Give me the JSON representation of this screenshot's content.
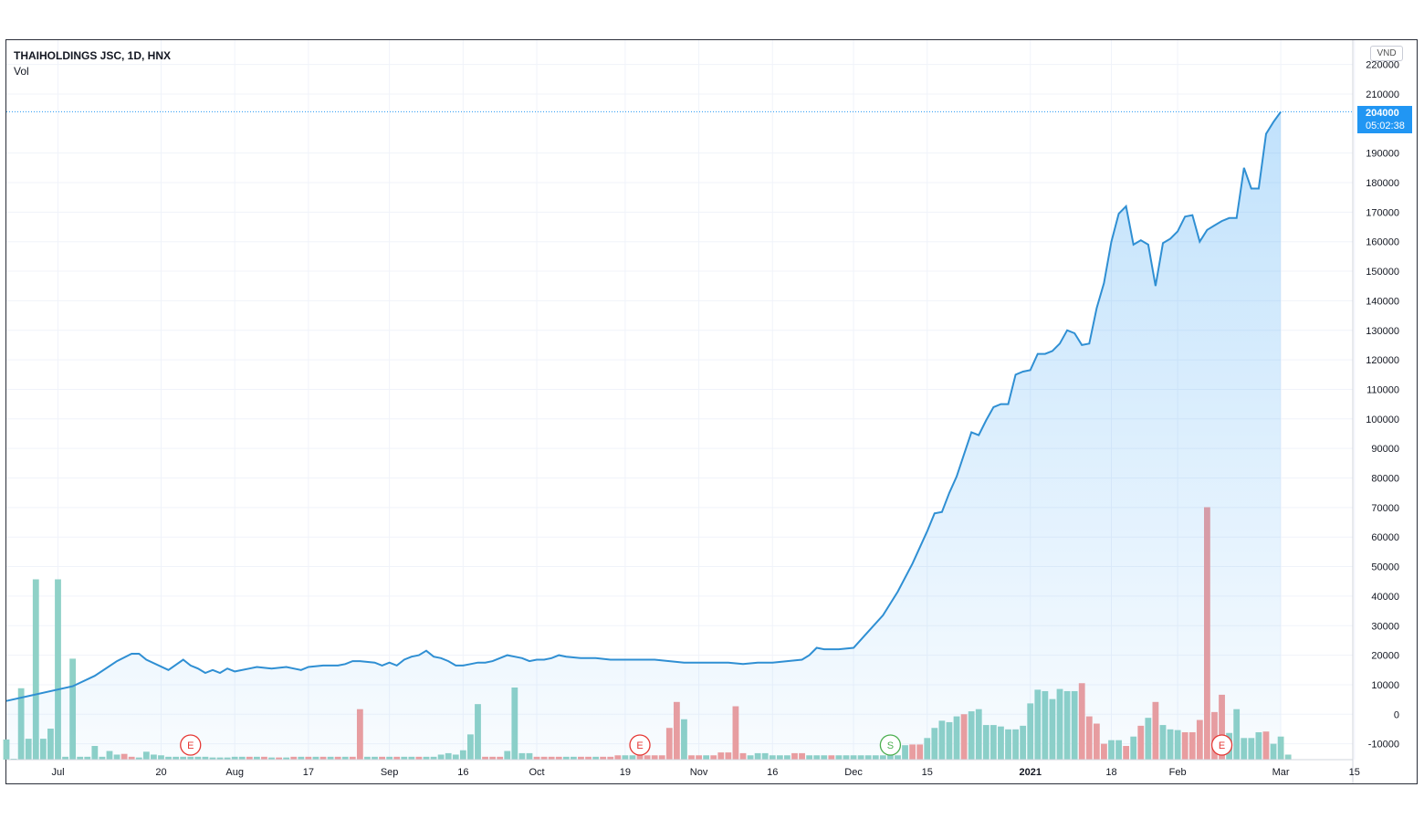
{
  "legend": {
    "title": "THAIHOLDINGS JSC, 1D, HNX",
    "volume_label": "Vol"
  },
  "currency_button": "VND",
  "last_price": {
    "price": "204000",
    "countdown": "05:02:38"
  },
  "colors": {
    "line": "#2f8fd3",
    "vol_up": "#8fd1c7",
    "vol_down": "#ef9d9d",
    "price_tag": "#2196f3",
    "grid": "#f0f3fa"
  },
  "markers": [
    {
      "letter": "E",
      "kind": "earnings",
      "date_index": 25
    },
    {
      "letter": "E",
      "kind": "earnings",
      "date_index": 86
    },
    {
      "letter": "S",
      "kind": "split",
      "date_index": 120
    },
    {
      "letter": "E",
      "kind": "earnings",
      "date_index": 165
    }
  ],
  "chart_data": {
    "type": "area",
    "x_axis_labels": [
      "Jul",
      "20",
      "Aug",
      "17",
      "Sep",
      "16",
      "Oct",
      "19",
      "Nov",
      "16",
      "Dec",
      "15",
      "2021",
      "18",
      "Feb",
      "Mar",
      "15"
    ],
    "y_axis_labels": [
      "220000",
      "210000",
      "190000",
      "180000",
      "170000",
      "160000",
      "150000",
      "140000",
      "130000",
      "120000",
      "110000",
      "100000",
      "90000",
      "80000",
      "70000",
      "60000",
      "50000",
      "40000",
      "30000",
      "20000",
      "10000",
      "0",
      "-10000"
    ],
    "ylim": [
      -15000,
      223000
    ],
    "grid": true,
    "price_series": [
      [
        0,
        4500
      ],
      [
        9,
        9500
      ],
      [
        12,
        13000
      ],
      [
        15,
        18000
      ],
      [
        17,
        20500
      ],
      [
        18,
        20500
      ],
      [
        19,
        18500
      ],
      [
        22,
        15000
      ],
      [
        24,
        18500
      ],
      [
        25,
        16500
      ],
      [
        26,
        15500
      ],
      [
        27,
        14000
      ],
      [
        28,
        15000
      ],
      [
        29,
        14000
      ],
      [
        30,
        15500
      ],
      [
        31,
        14500
      ],
      [
        33,
        15500
      ],
      [
        34,
        16000
      ],
      [
        36,
        15500
      ],
      [
        38,
        16000
      ],
      [
        39,
        15500
      ],
      [
        40,
        15000
      ],
      [
        41,
        16000
      ],
      [
        43,
        16500
      ],
      [
        45,
        16500
      ],
      [
        46,
        17000
      ],
      [
        47,
        18000
      ],
      [
        48,
        18000
      ],
      [
        50,
        17500
      ],
      [
        51,
        16500
      ],
      [
        52,
        17500
      ],
      [
        53,
        16500
      ],
      [
        54,
        18500
      ],
      [
        55,
        19500
      ],
      [
        56,
        20000
      ],
      [
        57,
        21500
      ],
      [
        58,
        19500
      ],
      [
        59,
        19000
      ],
      [
        60,
        18000
      ],
      [
        61,
        16500
      ],
      [
        62,
        16500
      ],
      [
        63,
        17000
      ],
      [
        64,
        17500
      ],
      [
        65,
        17500
      ],
      [
        66,
        18000
      ],
      [
        67,
        19000
      ],
      [
        68,
        20000
      ],
      [
        69,
        19500
      ],
      [
        70,
        19000
      ],
      [
        71,
        18000
      ],
      [
        72,
        18500
      ],
      [
        73,
        18500
      ],
      [
        74,
        19000
      ],
      [
        75,
        20000
      ],
      [
        76,
        19500
      ],
      [
        78,
        19000
      ],
      [
        80,
        19000
      ],
      [
        82,
        18500
      ],
      [
        84,
        18500
      ],
      [
        86,
        18500
      ],
      [
        88,
        18500
      ],
      [
        90,
        18000
      ],
      [
        92,
        17500
      ],
      [
        95,
        17500
      ],
      [
        98,
        17500
      ],
      [
        100,
        17000
      ],
      [
        102,
        17500
      ],
      [
        104,
        17500
      ],
      [
        106,
        18000
      ],
      [
        108,
        18500
      ],
      [
        109,
        20000
      ],
      [
        110,
        22500
      ],
      [
        111,
        22000
      ],
      [
        113,
        22000
      ],
      [
        115,
        22500
      ],
      [
        117,
        28000
      ],
      [
        119,
        33500
      ],
      [
        121,
        41500
      ],
      [
        123,
        51000
      ],
      [
        125,
        62000
      ],
      [
        126,
        68000
      ],
      [
        127,
        68500
      ],
      [
        128,
        75000
      ],
      [
        129,
        80500
      ],
      [
        130,
        88000
      ],
      [
        131,
        95500
      ],
      [
        132,
        94500
      ],
      [
        133,
        99500
      ],
      [
        134,
        104000
      ],
      [
        135,
        105000
      ],
      [
        136,
        105000
      ],
      [
        137,
        115000
      ],
      [
        138,
        116000
      ],
      [
        139,
        116500
      ],
      [
        140,
        122000
      ],
      [
        141,
        122000
      ],
      [
        142,
        123000
      ],
      [
        143,
        125500
      ],
      [
        144,
        130000
      ],
      [
        145,
        129000
      ],
      [
        146,
        125000
      ],
      [
        147,
        125500
      ],
      [
        148,
        137500
      ],
      [
        149,
        146000
      ],
      [
        150,
        160000
      ],
      [
        151,
        169500
      ],
      [
        152,
        172000
      ],
      [
        153,
        159000
      ],
      [
        154,
        160500
      ],
      [
        155,
        159000
      ],
      [
        156,
        145000
      ],
      [
        157,
        159500
      ],
      [
        158,
        161000
      ],
      [
        159,
        163500
      ],
      [
        160,
        168500
      ],
      [
        161,
        169000
      ],
      [
        162,
        160000
      ],
      [
        163,
        164000
      ],
      [
        164,
        165500
      ],
      [
        165,
        167000
      ],
      [
        166,
        168000
      ],
      [
        167,
        168000
      ],
      [
        168,
        185000
      ],
      [
        169,
        178000
      ],
      [
        170,
        178000
      ],
      [
        171,
        196500
      ],
      [
        172,
        200500
      ],
      [
        173,
        204000
      ]
    ],
    "volume_bars": [
      [
        0,
        0.28,
        "up"
      ],
      [
        1,
        0.0,
        "up"
      ],
      [
        2,
        0.99,
        "up"
      ],
      [
        3,
        0.29,
        "up"
      ],
      [
        4,
        2.5,
        "up"
      ],
      [
        5,
        0.29,
        "up"
      ],
      [
        6,
        0.43,
        "up"
      ],
      [
        7,
        2.5,
        "up"
      ],
      [
        8,
        0.04,
        "up"
      ],
      [
        9,
        1.4,
        "up"
      ],
      [
        10,
        0.04,
        "up"
      ],
      [
        11,
        0.04,
        "up"
      ],
      [
        12,
        0.19,
        "up"
      ],
      [
        13,
        0.04,
        "up"
      ],
      [
        14,
        0.12,
        "up"
      ],
      [
        15,
        0.07,
        "up"
      ],
      [
        16,
        0.08,
        "down"
      ],
      [
        17,
        0.04,
        "down"
      ],
      [
        18,
        0.03,
        "up"
      ],
      [
        19,
        0.11,
        "up"
      ],
      [
        20,
        0.07,
        "up"
      ],
      [
        21,
        0.06,
        "up"
      ],
      [
        22,
        0.04,
        "up"
      ],
      [
        23,
        0.04,
        "up"
      ],
      [
        24,
        0.04,
        "up"
      ],
      [
        25,
        0.04,
        "up"
      ],
      [
        26,
        0.04,
        "up"
      ],
      [
        27,
        0.04,
        "up"
      ],
      [
        28,
        0.03,
        "up"
      ],
      [
        29,
        0.03,
        "up"
      ],
      [
        30,
        0.03,
        "up"
      ],
      [
        31,
        0.04,
        "up"
      ],
      [
        32,
        0.04,
        "up"
      ],
      [
        33,
        0.04,
        "down"
      ],
      [
        34,
        0.04,
        "up"
      ],
      [
        35,
        0.04,
        "down"
      ],
      [
        36,
        0.03,
        "up"
      ],
      [
        37,
        0.03,
        "down"
      ],
      [
        38,
        0.03,
        "up"
      ],
      [
        39,
        0.04,
        "down"
      ],
      [
        40,
        0.04,
        "up"
      ],
      [
        41,
        0.04,
        "down"
      ],
      [
        42,
        0.04,
        "up"
      ],
      [
        43,
        0.04,
        "down"
      ],
      [
        44,
        0.04,
        "up"
      ],
      [
        45,
        0.04,
        "down"
      ],
      [
        46,
        0.04,
        "up"
      ],
      [
        47,
        0.04,
        "down"
      ],
      [
        48,
        0.7,
        "down"
      ],
      [
        49,
        0.04,
        "up"
      ],
      [
        50,
        0.04,
        "up"
      ],
      [
        51,
        0.04,
        "down"
      ],
      [
        52,
        0.04,
        "up"
      ],
      [
        53,
        0.04,
        "down"
      ],
      [
        54,
        0.04,
        "up"
      ],
      [
        55,
        0.04,
        "up"
      ],
      [
        56,
        0.04,
        "down"
      ],
      [
        57,
        0.04,
        "up"
      ],
      [
        58,
        0.04,
        "up"
      ],
      [
        59,
        0.07,
        "up"
      ],
      [
        60,
        0.09,
        "up"
      ],
      [
        61,
        0.07,
        "up"
      ],
      [
        62,
        0.13,
        "up"
      ],
      [
        63,
        0.35,
        "up"
      ],
      [
        64,
        0.77,
        "up"
      ],
      [
        65,
        0.04,
        "down"
      ],
      [
        66,
        0.04,
        "down"
      ],
      [
        67,
        0.04,
        "down"
      ],
      [
        68,
        0.12,
        "up"
      ],
      [
        69,
        1.0,
        "up"
      ],
      [
        70,
        0.09,
        "up"
      ],
      [
        71,
        0.09,
        "up"
      ],
      [
        72,
        0.04,
        "down"
      ],
      [
        73,
        0.04,
        "down"
      ],
      [
        74,
        0.04,
        "down"
      ],
      [
        75,
        0.04,
        "down"
      ],
      [
        76,
        0.04,
        "up"
      ],
      [
        77,
        0.04,
        "up"
      ],
      [
        78,
        0.04,
        "down"
      ],
      [
        79,
        0.04,
        "down"
      ],
      [
        80,
        0.04,
        "up"
      ],
      [
        81,
        0.04,
        "down"
      ],
      [
        82,
        0.04,
        "down"
      ],
      [
        83,
        0.06,
        "down"
      ],
      [
        84,
        0.06,
        "up"
      ],
      [
        85,
        0.06,
        "up"
      ],
      [
        86,
        0.06,
        "down"
      ],
      [
        87,
        0.06,
        "down"
      ],
      [
        88,
        0.06,
        "down"
      ],
      [
        89,
        0.06,
        "down"
      ],
      [
        90,
        0.44,
        "down"
      ],
      [
        91,
        0.8,
        "down"
      ],
      [
        92,
        0.56,
        "up"
      ],
      [
        93,
        0.06,
        "down"
      ],
      [
        94,
        0.06,
        "down"
      ],
      [
        95,
        0.06,
        "up"
      ],
      [
        96,
        0.06,
        "down"
      ],
      [
        97,
        0.1,
        "down"
      ],
      [
        98,
        0.1,
        "down"
      ],
      [
        99,
        0.74,
        "down"
      ],
      [
        100,
        0.09,
        "down"
      ],
      [
        101,
        0.06,
        "up"
      ],
      [
        102,
        0.09,
        "up"
      ],
      [
        103,
        0.09,
        "up"
      ],
      [
        104,
        0.06,
        "up"
      ],
      [
        105,
        0.06,
        "up"
      ],
      [
        106,
        0.06,
        "up"
      ],
      [
        107,
        0.09,
        "down"
      ],
      [
        108,
        0.09,
        "down"
      ],
      [
        109,
        0.06,
        "up"
      ],
      [
        110,
        0.06,
        "up"
      ],
      [
        111,
        0.06,
        "up"
      ],
      [
        112,
        0.06,
        "down"
      ],
      [
        113,
        0.06,
        "up"
      ],
      [
        114,
        0.06,
        "up"
      ],
      [
        115,
        0.06,
        "up"
      ],
      [
        116,
        0.06,
        "up"
      ],
      [
        117,
        0.06,
        "up"
      ],
      [
        118,
        0.06,
        "up"
      ],
      [
        119,
        0.06,
        "up"
      ],
      [
        120,
        0.06,
        "up"
      ],
      [
        121,
        0.06,
        "up"
      ],
      [
        122,
        0.2,
        "up"
      ],
      [
        123,
        0.21,
        "down"
      ],
      [
        124,
        0.21,
        "down"
      ],
      [
        125,
        0.3,
        "up"
      ],
      [
        126,
        0.44,
        "up"
      ],
      [
        127,
        0.54,
        "up"
      ],
      [
        128,
        0.52,
        "up"
      ],
      [
        129,
        0.6,
        "up"
      ],
      [
        130,
        0.63,
        "down"
      ],
      [
        131,
        0.67,
        "up"
      ],
      [
        132,
        0.7,
        "up"
      ],
      [
        133,
        0.48,
        "up"
      ],
      [
        134,
        0.48,
        "up"
      ],
      [
        135,
        0.46,
        "up"
      ],
      [
        136,
        0.42,
        "up"
      ],
      [
        137,
        0.42,
        "up"
      ],
      [
        138,
        0.47,
        "up"
      ],
      [
        139,
        0.78,
        "up"
      ],
      [
        140,
        0.97,
        "up"
      ],
      [
        141,
        0.95,
        "up"
      ],
      [
        142,
        0.84,
        "up"
      ],
      [
        143,
        0.98,
        "up"
      ],
      [
        144,
        0.95,
        "up"
      ],
      [
        145,
        0.95,
        "up"
      ],
      [
        146,
        1.06,
        "down"
      ],
      [
        147,
        0.6,
        "down"
      ],
      [
        148,
        0.5,
        "down"
      ],
      [
        149,
        0.22,
        "down"
      ],
      [
        150,
        0.27,
        "up"
      ],
      [
        151,
        0.27,
        "up"
      ],
      [
        152,
        0.19,
        "down"
      ],
      [
        153,
        0.32,
        "up"
      ],
      [
        154,
        0.47,
        "down"
      ],
      [
        155,
        0.58,
        "up"
      ],
      [
        156,
        0.8,
        "down"
      ],
      [
        157,
        0.48,
        "up"
      ],
      [
        158,
        0.42,
        "up"
      ],
      [
        159,
        0.41,
        "up"
      ],
      [
        160,
        0.38,
        "down"
      ],
      [
        161,
        0.38,
        "down"
      ],
      [
        162,
        0.55,
        "down"
      ],
      [
        163,
        3.5,
        "down"
      ],
      [
        164,
        0.66,
        "down"
      ],
      [
        165,
        0.9,
        "down"
      ],
      [
        166,
        0.37,
        "up"
      ],
      [
        167,
        0.7,
        "up"
      ],
      [
        168,
        0.3,
        "up"
      ],
      [
        169,
        0.3,
        "up"
      ],
      [
        170,
        0.38,
        "up"
      ],
      [
        171,
        0.39,
        "down"
      ],
      [
        172,
        0.22,
        "up"
      ],
      [
        173,
        0.32,
        "up"
      ],
      [
        174,
        0.07,
        "up"
      ]
    ]
  }
}
